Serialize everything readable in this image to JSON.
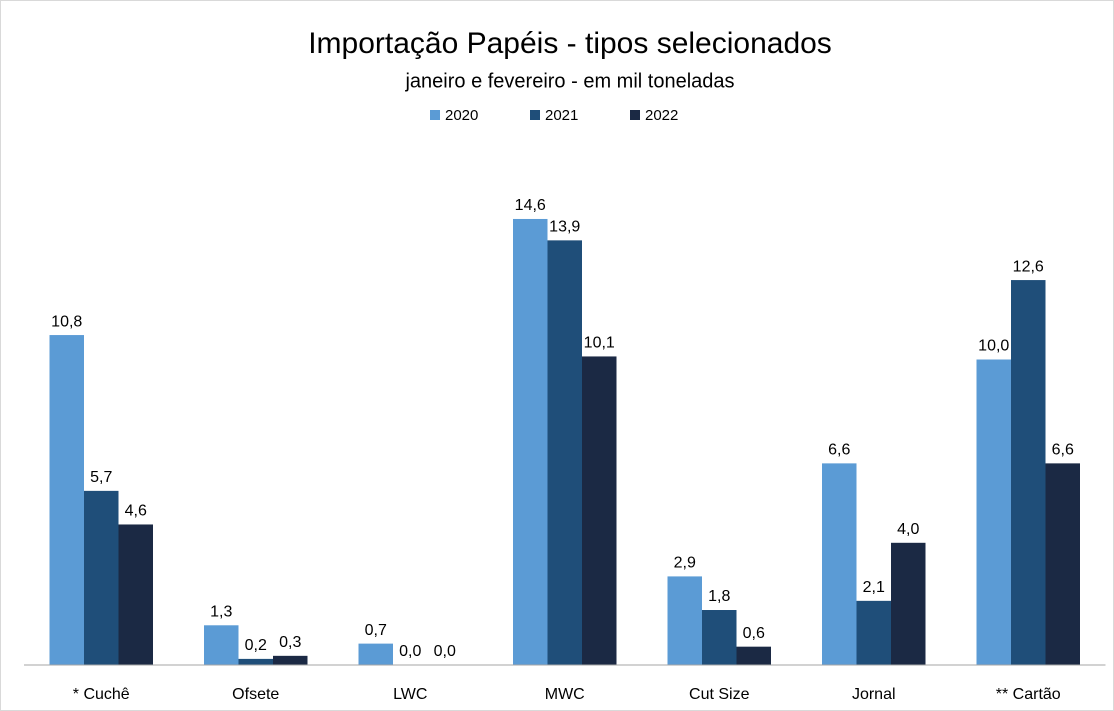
{
  "chart_data": {
    "type": "bar",
    "title": "Importação Papéis - tipos selecionados",
    "subtitle": "janeiro e fevereiro - em mil toneladas",
    "categories": [
      "* Cuchê",
      "Ofsete",
      "LWC",
      "MWC",
      "Cut Size",
      "Jornal",
      "** Cartão"
    ],
    "series": [
      {
        "name": "2020",
        "color": "#5b9bd5",
        "values": [
          10.8,
          1.3,
          0.7,
          14.6,
          2.9,
          6.6,
          10.0
        ],
        "value_labels": [
          "10,8",
          "1,3",
          "0,7",
          "14,6",
          "2,9",
          "6,6",
          "10,0"
        ]
      },
      {
        "name": "2021",
        "color": "#1f4e79",
        "values": [
          5.7,
          0.2,
          0.0,
          13.9,
          1.8,
          2.1,
          12.6
        ],
        "value_labels": [
          "5,7",
          "0,2",
          "0,0",
          "13,9",
          "1,8",
          "2,1",
          "12,6"
        ]
      },
      {
        "name": "2022",
        "color": "#1b2944",
        "values": [
          4.6,
          0.3,
          0.0,
          10.1,
          0.6,
          4.0,
          6.6
        ],
        "value_labels": [
          "4,6",
          "0,3",
          "0,0",
          "10,1",
          "0,6",
          "4,0",
          "6,6"
        ]
      }
    ],
    "ylim": [
      0,
      16
    ],
    "legend": "top"
  }
}
